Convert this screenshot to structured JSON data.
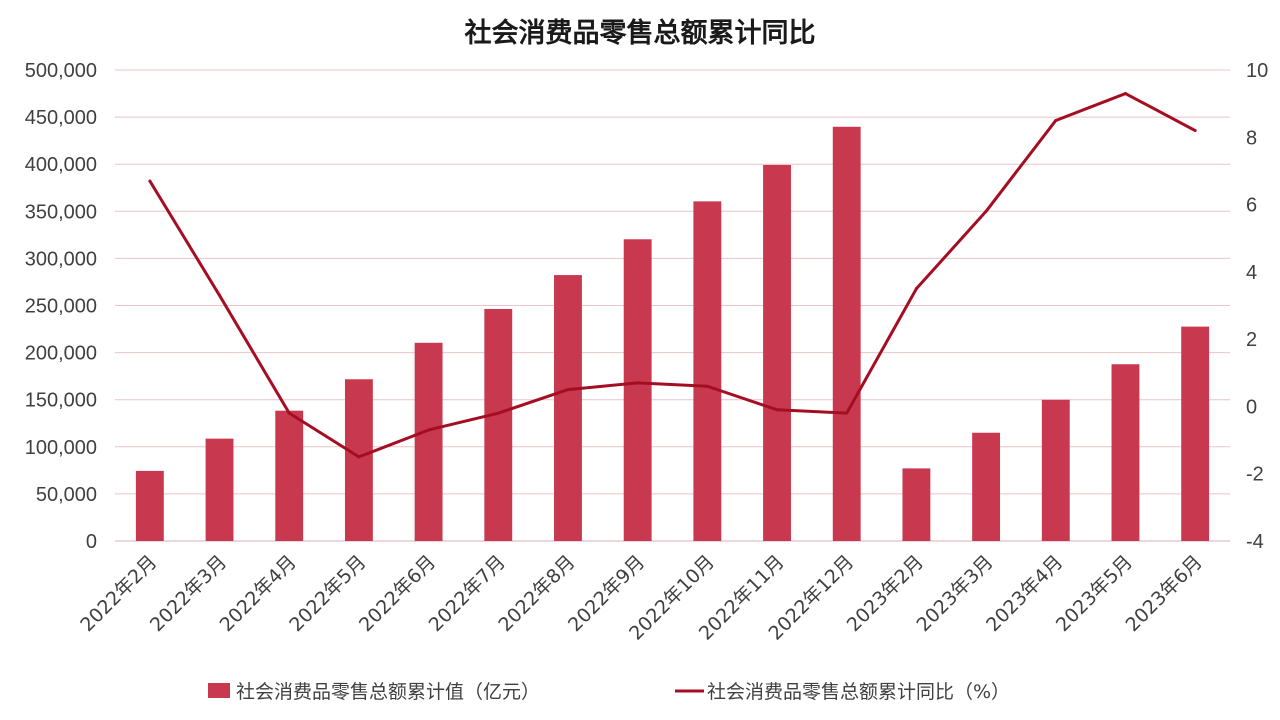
{
  "chart_data": {
    "type": "bar+line",
    "title": "社会消费品零售总额累计同比",
    "categories": [
      "2022年2月",
      "2022年3月",
      "2022年4月",
      "2022年5月",
      "2022年6月",
      "2022年7月",
      "2022年8月",
      "2022年9月",
      "2022年10月",
      "2022年11月",
      "2022年12月",
      "2023年2月",
      "2023年3月",
      "2023年4月",
      "2023年5月",
      "2023年6月"
    ],
    "series": [
      {
        "name": "社会消费品零售总额累计值（亿元）",
        "type": "bar",
        "axis": "left",
        "color": "#C8394F",
        "values": [
          74426,
          108659,
          138318,
          171689,
          210432,
          246315,
          282313,
          320305,
          360575,
          399190,
          439733,
          77067,
          114922,
          149890,
          187636,
          227588
        ]
      },
      {
        "name": "社会消费品零售总额累计同比（%）",
        "type": "line",
        "axis": "right",
        "color": "#A50E22",
        "values": [
          6.7,
          3.3,
          -0.2,
          -1.5,
          -0.7,
          -0.2,
          0.5,
          0.7,
          0.6,
          -0.1,
          -0.2,
          3.5,
          5.8,
          8.5,
          9.3,
          8.2
        ]
      }
    ],
    "left_axis": {
      "ylim": [
        0,
        500000
      ],
      "ticks": [
        "0",
        "50,000",
        "100,000",
        "150,000",
        "200,000",
        "250,000",
        "300,000",
        "350,000",
        "400,000",
        "450,000",
        "500,000"
      ]
    },
    "right_axis": {
      "ylim": [
        -4,
        10
      ],
      "ticks": [
        "-4",
        "-2",
        "0",
        "2",
        "4",
        "6",
        "8",
        "10"
      ]
    },
    "grid": true,
    "grid_color": "#EAC4C8",
    "legend_position": "bottom"
  }
}
